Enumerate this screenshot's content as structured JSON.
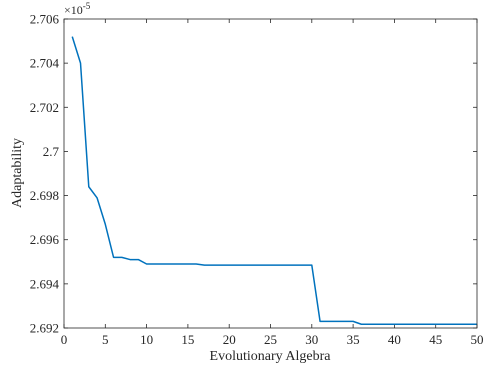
{
  "chart_data": {
    "type": "line",
    "xlabel": "Evolutionary Algebra",
    "ylabel": "Adaptability",
    "xlim": [
      0,
      50
    ],
    "ylim": [
      2.692,
      2.706
    ],
    "y_exponent_base": "×10",
    "y_exponent_power": "-5",
    "x_ticks": [
      0,
      5,
      10,
      15,
      20,
      25,
      30,
      35,
      40,
      45,
      50
    ],
    "x_tick_labels": [
      "0",
      "5",
      "10",
      "15",
      "20",
      "25",
      "30",
      "35",
      "40",
      "45",
      "50"
    ],
    "y_ticks": [
      2.692,
      2.694,
      2.696,
      2.698,
      2.7,
      2.702,
      2.704,
      2.706
    ],
    "y_tick_labels": [
      "2.692",
      "2.694",
      "2.696",
      "2.698",
      "2.7",
      "2.702",
      "2.704",
      "2.706"
    ],
    "grid": false,
    "line_color": "#0072bd",
    "series": [
      {
        "x": [
          1,
          2,
          3,
          4,
          5,
          6,
          7,
          8,
          9,
          10,
          11,
          12,
          13,
          14,
          15,
          16,
          17,
          18,
          19,
          20,
          21,
          22,
          23,
          24,
          25,
          26,
          27,
          28,
          29,
          30,
          31,
          32,
          33,
          34,
          35,
          36,
          37,
          38,
          39,
          40,
          41,
          42,
          43,
          44,
          45,
          46,
          47,
          48,
          49,
          50
        ],
        "y": [
          2.7052,
          2.704,
          2.6984,
          2.6979,
          2.6967,
          2.6952,
          2.6952,
          2.6951,
          2.6951,
          2.6949,
          2.6949,
          2.6949,
          2.6949,
          2.6949,
          2.6949,
          2.6949,
          2.69485,
          2.69485,
          2.69485,
          2.69485,
          2.69485,
          2.69485,
          2.69485,
          2.69485,
          2.69485,
          2.69485,
          2.69485,
          2.69485,
          2.69485,
          2.69485,
          2.6923,
          2.6923,
          2.6923,
          2.6923,
          2.6923,
          2.69217,
          2.69217,
          2.69217,
          2.69217,
          2.69217,
          2.69217,
          2.69217,
          2.69217,
          2.69217,
          2.69217,
          2.69217,
          2.69217,
          2.69217,
          2.69217,
          2.69217
        ]
      }
    ]
  }
}
